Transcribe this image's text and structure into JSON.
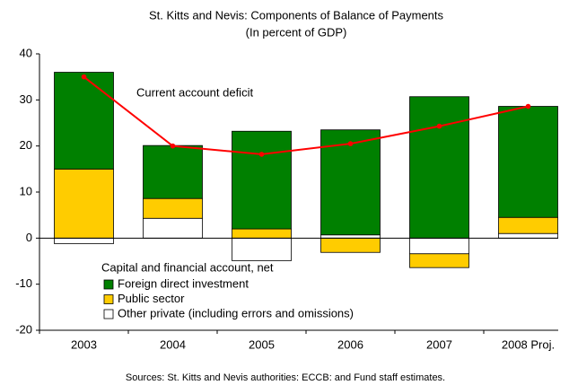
{
  "chart_data": {
    "type": "bar",
    "stacked": true,
    "title": "St. Kitts and Nevis: Components of Balance of Payments",
    "subtitle": "(In percent of GDP)",
    "categories": [
      "2003",
      "2004",
      "2005",
      "2006",
      "2007",
      "2008 Proj."
    ],
    "legend_title": "Capital and financial account, net",
    "series": [
      {
        "name": "Other private (including errors and omissions)",
        "color": "#ffffff",
        "values": [
          -1.2,
          4.3,
          -4.9,
          0.7,
          -3.4,
          1.0
        ]
      },
      {
        "name": "Public sector",
        "color": "#ffcc00",
        "values": [
          15.0,
          4.3,
          2.0,
          -3.1,
          -3.0,
          3.5
        ]
      },
      {
        "name": "Foreign direct investment",
        "color": "#008000",
        "values": [
          21.0,
          11.5,
          21.2,
          22.8,
          30.7,
          24.1
        ]
      },
      {
        "name": "Current account deficit",
        "type": "line",
        "color": "#ff0000",
        "values": [
          35.0,
          20.0,
          18.2,
          20.5,
          24.3,
          28.6
        ]
      }
    ],
    "ylim": [
      -20,
      40
    ],
    "yticks": [
      -20,
      -10,
      0,
      10,
      20,
      30,
      40
    ],
    "source": "Sources: St. Kitts and Nevis authorities: ECCB: and Fund staff estimates."
  }
}
